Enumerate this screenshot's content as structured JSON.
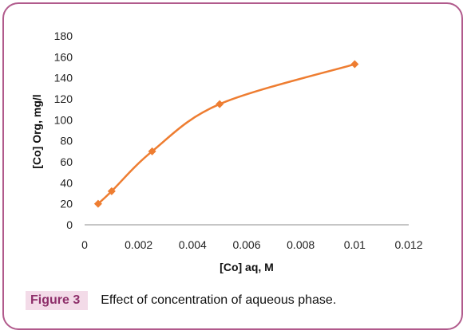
{
  "figure": {
    "label": "Figure 3",
    "caption": "Effect of concentration of aqueous phase."
  },
  "colors": {
    "border": "#b15a8c",
    "series": "#ee7d31",
    "label_bg": "#f3dbe8",
    "label_text": "#8e2f6a"
  },
  "chart_data": {
    "type": "scatter",
    "title": "",
    "xlabel": "[Co] aq, M",
    "ylabel": "[Co] Org, mg/l",
    "xlim": [
      0,
      0.012
    ],
    "ylim": [
      0,
      180
    ],
    "x_ticks": [
      "0",
      "0.002",
      "0.004",
      "0.006",
      "0.008",
      "0.01",
      "0.012"
    ],
    "y_ticks": [
      "0",
      "20",
      "40",
      "60",
      "80",
      "100",
      "120",
      "140",
      "160",
      "180"
    ],
    "grid": false,
    "legend": "none",
    "series": [
      {
        "marker": "diamond",
        "line": "smooth",
        "x": [
          0.0005,
          0.001,
          0.0025,
          0.005,
          0.01
        ],
        "y": [
          20,
          32,
          70,
          115,
          153
        ]
      }
    ]
  }
}
